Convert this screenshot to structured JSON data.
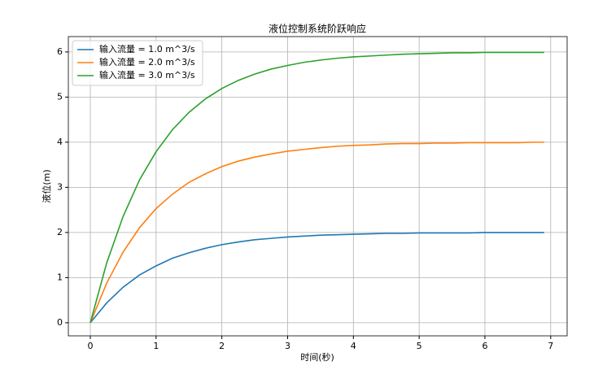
{
  "chart_data": {
    "type": "line",
    "title": "液位控制系统阶跃响应",
    "xlabel": "时间(秒)",
    "ylabel": "液位(m)",
    "x": [
      0,
      0.25,
      0.5,
      0.75,
      1,
      1.25,
      1.5,
      1.75,
      2,
      2.25,
      2.5,
      2.75,
      3,
      3.25,
      3.5,
      3.75,
      4,
      4.25,
      4.5,
      4.75,
      5,
      5.25,
      5.5,
      5.75,
      6,
      6.25,
      6.5,
      6.75,
      6.9
    ],
    "series": [
      {
        "name": "输入流量 = 1.0 m^3/s",
        "color": "#1f77b4",
        "values": [
          0,
          0.44,
          0.79,
          1.06,
          1.26,
          1.43,
          1.55,
          1.65,
          1.73,
          1.79,
          1.84,
          1.87,
          1.9,
          1.92,
          1.94,
          1.95,
          1.96,
          1.97,
          1.98,
          1.98,
          1.99,
          1.99,
          1.99,
          1.99,
          2,
          2,
          2,
          2,
          2
        ]
      },
      {
        "name": "输入流量 = 2.0 m^3/s",
        "color": "#ff7f0e",
        "values": [
          0,
          0.88,
          1.57,
          2.11,
          2.53,
          2.85,
          3.11,
          3.3,
          3.46,
          3.58,
          3.67,
          3.74,
          3.8,
          3.84,
          3.88,
          3.91,
          3.93,
          3.94,
          3.96,
          3.97,
          3.97,
          3.98,
          3.98,
          3.99,
          3.99,
          3.99,
          3.99,
          4,
          4
        ]
      },
      {
        "name": "输入流量 = 3.0 m^3/s",
        "color": "#2ca02c",
        "values": [
          0,
          1.33,
          2.36,
          3.17,
          3.79,
          4.28,
          4.66,
          4.96,
          5.19,
          5.37,
          5.51,
          5.62,
          5.7,
          5.77,
          5.82,
          5.86,
          5.89,
          5.91,
          5.93,
          5.95,
          5.96,
          5.97,
          5.98,
          5.98,
          5.99,
          5.99,
          5.99,
          5.99,
          5.99
        ]
      }
    ],
    "xlim": [
      -0.334,
      7.25
    ],
    "ylim": [
      -0.29,
      6.34
    ],
    "xticks": [
      0,
      1,
      2,
      3,
      4,
      5,
      6,
      7
    ],
    "yticks": [
      0,
      1,
      2,
      3,
      4,
      5,
      6
    ],
    "grid": true,
    "legend": "upper-left"
  }
}
